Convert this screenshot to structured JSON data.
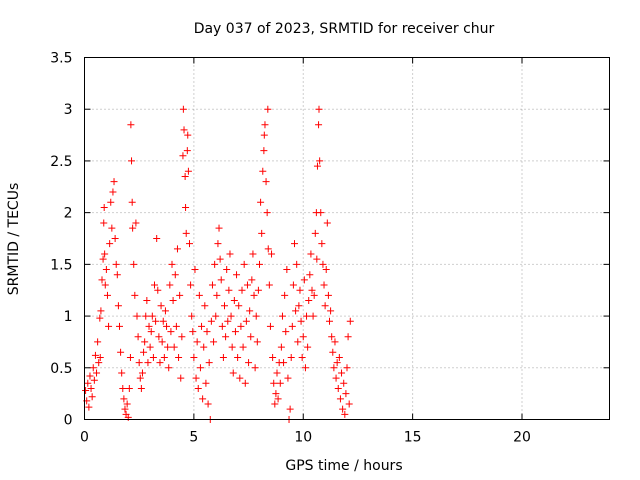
{
  "chart_data": {
    "type": "scatter",
    "title": "Day 037 of 2023, SRMTID for receiver chur",
    "xlabel": "GPS time / hours",
    "ylabel": "SRMTID / TECUs",
    "xlim": [
      0,
      24
    ],
    "ylim": [
      0,
      3.5
    ],
    "xticks": [
      0,
      5,
      10,
      15,
      20
    ],
    "xtick_labels": [
      "0",
      "5",
      "10",
      "15",
      "20"
    ],
    "yticks": [
      0,
      0.5,
      1,
      1.5,
      2,
      2.5,
      3,
      3.5
    ],
    "ytick_labels": [
      "0",
      "0.5",
      "1",
      "1.5",
      "2",
      "2.5",
      "3",
      "3.5"
    ],
    "grid": true,
    "marker": "+",
    "color": "#ff0000",
    "series": [
      {
        "name": "SRMTID",
        "points": [
          [
            0.05,
            0.28
          ],
          [
            0.1,
            0.18
          ],
          [
            0.15,
            0.35
          ],
          [
            0.2,
            0.12
          ],
          [
            0.25,
            0.42
          ],
          [
            0.3,
            0.3
          ],
          [
            0.35,
            0.22
          ],
          [
            0.4,
            0.5
          ],
          [
            0.45,
            0.38
          ],
          [
            0.5,
            0.62
          ],
          [
            0.55,
            0.45
          ],
          [
            0.6,
            0.75
          ],
          [
            0.65,
            0.55
          ],
          [
            0.7,
            0.98
          ],
          [
            0.72,
            0.6
          ],
          [
            0.75,
            1.05
          ],
          [
            0.8,
            1.35
          ],
          [
            0.85,
            1.55
          ],
          [
            0.88,
            1.9
          ],
          [
            0.9,
            2.05
          ],
          [
            0.92,
            1.6
          ],
          [
            0.95,
            1.3
          ],
          [
            1.0,
            1.45
          ],
          [
            1.05,
            1.2
          ],
          [
            1.1,
            0.9
          ],
          [
            1.15,
            1.7
          ],
          [
            1.2,
            2.1
          ],
          [
            1.25,
            1.85
          ],
          [
            1.3,
            2.2
          ],
          [
            1.35,
            2.3
          ],
          [
            1.4,
            1.75
          ],
          [
            1.45,
            1.5
          ],
          [
            1.5,
            1.4
          ],
          [
            1.55,
            1.1
          ],
          [
            1.6,
            0.9
          ],
          [
            1.65,
            0.65
          ],
          [
            1.7,
            0.45
          ],
          [
            1.75,
            0.3
          ],
          [
            1.8,
            0.2
          ],
          [
            1.85,
            0.1
          ],
          [
            1.9,
            0.05
          ],
          [
            1.95,
            0.15
          ],
          [
            2.0,
            0.02
          ],
          [
            2.05,
            0.3
          ],
          [
            2.1,
            0.6
          ],
          [
            2.12,
            2.85
          ],
          [
            2.15,
            2.5
          ],
          [
            2.18,
            2.1
          ],
          [
            2.2,
            1.85
          ],
          [
            2.25,
            1.5
          ],
          [
            2.3,
            1.2
          ],
          [
            2.35,
            1.9
          ],
          [
            2.4,
            1.0
          ],
          [
            2.45,
            0.8
          ],
          [
            2.5,
            0.55
          ],
          [
            2.55,
            0.4
          ],
          [
            2.6,
            0.3
          ],
          [
            2.65,
            0.45
          ],
          [
            2.7,
            0.65
          ],
          [
            2.75,
            0.75
          ],
          [
            2.8,
            1.0
          ],
          [
            2.85,
            1.15
          ],
          [
            2.9,
            0.55
          ],
          [
            2.95,
            0.9
          ],
          [
            3.0,
            0.7
          ],
          [
            3.05,
            0.85
          ],
          [
            3.1,
            1.0
          ],
          [
            3.15,
            0.6
          ],
          [
            3.2,
            1.3
          ],
          [
            3.25,
            0.95
          ],
          [
            3.3,
            1.75
          ],
          [
            3.35,
            1.25
          ],
          [
            3.4,
            0.8
          ],
          [
            3.45,
            0.55
          ],
          [
            3.5,
            1.1
          ],
          [
            3.55,
            0.75
          ],
          [
            3.6,
            0.95
          ],
          [
            3.65,
            0.6
          ],
          [
            3.7,
            1.05
          ],
          [
            3.75,
            0.9
          ],
          [
            3.8,
            0.7
          ],
          [
            3.85,
            0.5
          ],
          [
            3.9,
            1.3
          ],
          [
            3.95,
            0.85
          ],
          [
            4.0,
            1.5
          ],
          [
            4.05,
            1.15
          ],
          [
            4.1,
            0.7
          ],
          [
            4.15,
            1.4
          ],
          [
            4.2,
            0.9
          ],
          [
            4.25,
            1.65
          ],
          [
            4.3,
            0.6
          ],
          [
            4.35,
            1.2
          ],
          [
            4.4,
            0.4
          ],
          [
            4.45,
            0.8
          ],
          [
            4.5,
            2.55
          ],
          [
            4.52,
            3.0
          ],
          [
            4.55,
            2.8
          ],
          [
            4.6,
            2.35
          ],
          [
            4.62,
            2.05
          ],
          [
            4.65,
            1.8
          ],
          [
            4.7,
            2.6
          ],
          [
            4.72,
            2.75
          ],
          [
            4.75,
            2.4
          ],
          [
            4.8,
            1.7
          ],
          [
            4.85,
            1.3
          ],
          [
            4.9,
            1.0
          ],
          [
            4.95,
            0.85
          ],
          [
            5.0,
            0.6
          ],
          [
            5.05,
            1.45
          ],
          [
            5.1,
            0.4
          ],
          [
            5.15,
            0.75
          ],
          [
            5.2,
            0.3
          ],
          [
            5.25,
            1.2
          ],
          [
            5.3,
            0.5
          ],
          [
            5.35,
            0.9
          ],
          [
            5.4,
            0.2
          ],
          [
            5.45,
            0.7
          ],
          [
            5.5,
            1.1
          ],
          [
            5.55,
            0.35
          ],
          [
            5.6,
            0.85
          ],
          [
            5.65,
            0.15
          ],
          [
            5.7,
            0.55
          ],
          [
            5.75,
            0.0
          ],
          [
            5.8,
            0.95
          ],
          [
            5.85,
            1.3
          ],
          [
            5.9,
            0.75
          ],
          [
            5.95,
            1.5
          ],
          [
            6.0,
            1.0
          ],
          [
            6.05,
            1.2
          ],
          [
            6.1,
            1.7
          ],
          [
            6.15,
            1.85
          ],
          [
            6.2,
            1.55
          ],
          [
            6.25,
            1.35
          ],
          [
            6.3,
            0.9
          ],
          [
            6.35,
            0.6
          ],
          [
            6.4,
            1.1
          ],
          [
            6.45,
            0.8
          ],
          [
            6.5,
            1.45
          ],
          [
            6.55,
            0.95
          ],
          [
            6.6,
            1.25
          ],
          [
            6.65,
            1.6
          ],
          [
            6.7,
            1.0
          ],
          [
            6.75,
            0.7
          ],
          [
            6.8,
            0.45
          ],
          [
            6.85,
            1.15
          ],
          [
            6.9,
            0.85
          ],
          [
            6.95,
            1.4
          ],
          [
            7.0,
            0.6
          ],
          [
            7.05,
            1.1
          ],
          [
            7.1,
            0.4
          ],
          [
            7.15,
            0.9
          ],
          [
            7.2,
            1.25
          ],
          [
            7.25,
            0.7
          ],
          [
            7.3,
            1.5
          ],
          [
            7.35,
            0.35
          ],
          [
            7.4,
            0.95
          ],
          [
            7.45,
            1.3
          ],
          [
            7.5,
            0.55
          ],
          [
            7.55,
            1.05
          ],
          [
            7.6,
            0.8
          ],
          [
            7.65,
            1.35
          ],
          [
            7.7,
            1.6
          ],
          [
            7.75,
            1.2
          ],
          [
            7.8,
            0.5
          ],
          [
            7.85,
            1.0
          ],
          [
            7.9,
            0.75
          ],
          [
            7.95,
            1.25
          ],
          [
            8.0,
            1.5
          ],
          [
            8.05,
            2.1
          ],
          [
            8.1,
            1.8
          ],
          [
            8.15,
            2.4
          ],
          [
            8.2,
            2.6
          ],
          [
            8.22,
            2.75
          ],
          [
            8.25,
            2.85
          ],
          [
            8.3,
            2.3
          ],
          [
            8.35,
            2.0
          ],
          [
            8.38,
            3.0
          ],
          [
            8.4,
            1.65
          ],
          [
            8.45,
            1.3
          ],
          [
            8.5,
            0.9
          ],
          [
            8.55,
            1.6
          ],
          [
            8.6,
            0.6
          ],
          [
            8.65,
            0.35
          ],
          [
            8.7,
            0.15
          ],
          [
            8.75,
            0.25
          ],
          [
            8.8,
            0.45
          ],
          [
            8.85,
            0.2
          ],
          [
            8.9,
            0.55
          ],
          [
            8.95,
            0.35
          ],
          [
            9.0,
            0.7
          ],
          [
            9.05,
            1.0
          ],
          [
            9.1,
            0.55
          ],
          [
            9.15,
            1.2
          ],
          [
            9.2,
            0.85
          ],
          [
            9.25,
            1.45
          ],
          [
            9.3,
            0.4
          ],
          [
            9.35,
            0.0
          ],
          [
            9.4,
            0.1
          ],
          [
            9.45,
            0.6
          ],
          [
            9.5,
            0.9
          ],
          [
            9.55,
            1.3
          ],
          [
            9.6,
            1.7
          ],
          [
            9.65,
            1.05
          ],
          [
            9.7,
            1.5
          ],
          [
            9.75,
            0.75
          ],
          [
            9.8,
            1.1
          ],
          [
            9.85,
            1.25
          ],
          [
            9.9,
            0.95
          ],
          [
            9.95,
            0.6
          ],
          [
            10.0,
            0.8
          ],
          [
            10.05,
            1.35
          ],
          [
            10.1,
            0.5
          ],
          [
            10.15,
            1.0
          ],
          [
            10.2,
            0.7
          ],
          [
            10.25,
            1.15
          ],
          [
            10.3,
            1.4
          ],
          [
            10.35,
            1.6
          ],
          [
            10.4,
            1.25
          ],
          [
            10.45,
            1.0
          ],
          [
            10.5,
            1.2
          ],
          [
            10.55,
            1.8
          ],
          [
            10.6,
            2.0
          ],
          [
            10.62,
            1.55
          ],
          [
            10.65,
            2.45
          ],
          [
            10.7,
            2.85
          ],
          [
            10.72,
            3.0
          ],
          [
            10.75,
            2.5
          ],
          [
            10.8,
            2.0
          ],
          [
            10.85,
            1.7
          ],
          [
            10.9,
            1.5
          ],
          [
            10.95,
            1.3
          ],
          [
            11.0,
            1.1
          ],
          [
            11.05,
            1.45
          ],
          [
            11.1,
            1.9
          ],
          [
            11.15,
            1.2
          ],
          [
            11.2,
            0.95
          ],
          [
            11.25,
            1.05
          ],
          [
            11.3,
            0.8
          ],
          [
            11.35,
            0.65
          ],
          [
            11.4,
            0.5
          ],
          [
            11.45,
            0.75
          ],
          [
            11.5,
            0.4
          ],
          [
            11.55,
            0.55
          ],
          [
            11.6,
            0.3
          ],
          [
            11.65,
            0.6
          ],
          [
            11.7,
            0.2
          ],
          [
            11.75,
            0.45
          ],
          [
            11.8,
            0.1
          ],
          [
            11.85,
            0.35
          ],
          [
            11.9,
            0.05
          ],
          [
            11.95,
            0.25
          ],
          [
            12.0,
            0.5
          ],
          [
            12.05,
            0.8
          ],
          [
            12.1,
            0.15
          ],
          [
            12.15,
            0.95
          ]
        ]
      }
    ]
  }
}
